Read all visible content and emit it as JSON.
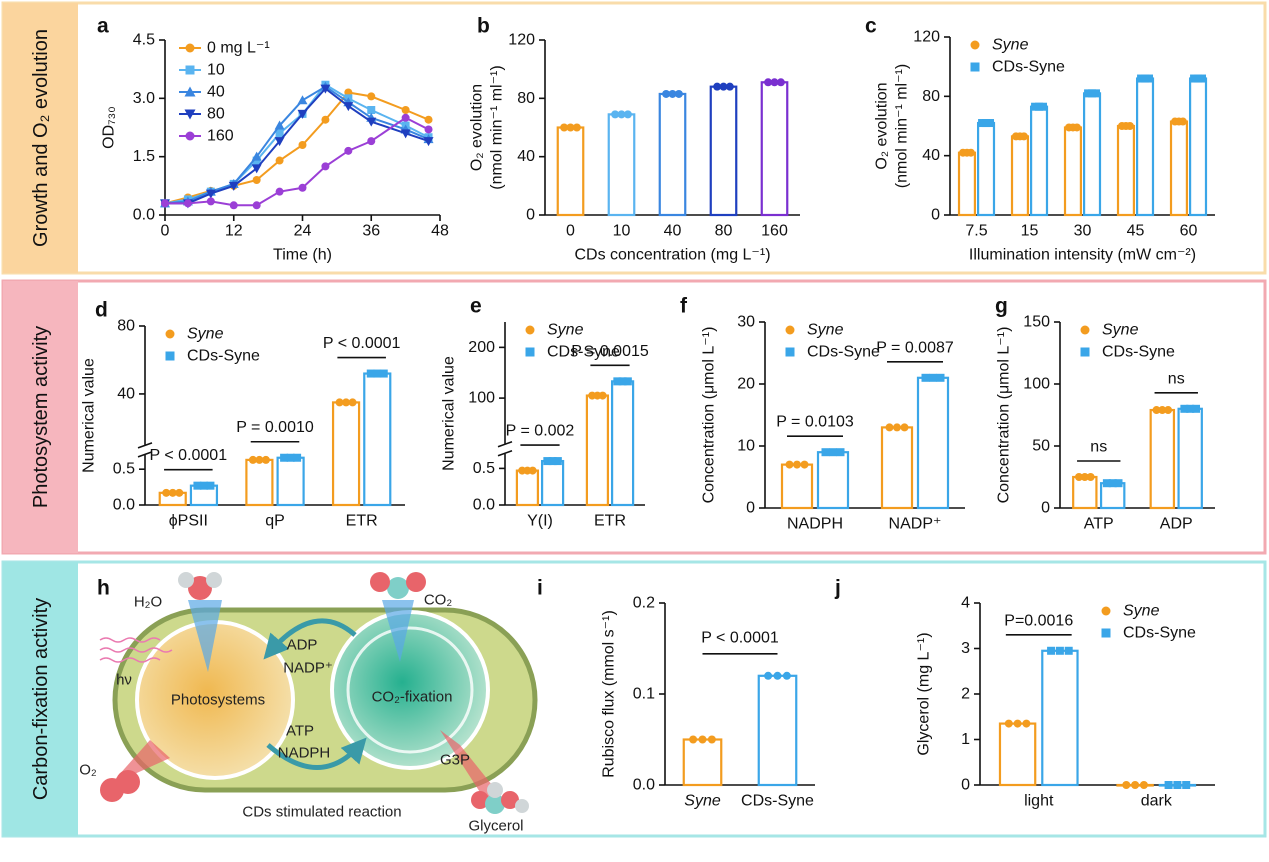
{
  "sections": [
    {
      "label": "Growth and O₂ evolution"
    },
    {
      "label": "Photosystem activity"
    },
    {
      "label": "Carbon-fixation activity"
    }
  ],
  "chart_data": [
    {
      "type": "line",
      "panel_label": "a",
      "xlabel": "Time (h)",
      "ylabel": "OD₇₃₀",
      "x": [
        0,
        4,
        8,
        12,
        16,
        20,
        24,
        28,
        32,
        36,
        42,
        46
      ],
      "xlim": [
        0,
        48
      ],
      "xticks": [
        0,
        12,
        24,
        36,
        48
      ],
      "ylim": [
        0,
        4.5
      ],
      "yticks": [
        {
          "value": 0,
          "label": "0.0"
        },
        1.5,
        {
          "value": 3,
          "label": "3.0"
        },
        4.5
      ],
      "legend": "upper left",
      "series": [
        {
          "name": "0 mg L⁻¹",
          "color": "#f39c1f",
          "marker": "circle",
          "values": [
            0.3,
            0.45,
            0.62,
            0.75,
            0.9,
            1.4,
            1.8,
            2.45,
            3.15,
            3.05,
            2.7,
            2.45
          ]
        },
        {
          "name": "10",
          "color": "#5ab4f0",
          "marker": "square",
          "values": [
            0.3,
            0.4,
            0.6,
            0.8,
            1.4,
            2.1,
            2.6,
            3.35,
            3.0,
            2.7,
            2.3,
            2.0
          ]
        },
        {
          "name": "40",
          "color": "#3a86e0",
          "marker": "triangle",
          "values": [
            0.3,
            0.35,
            0.6,
            0.8,
            1.5,
            2.3,
            2.95,
            3.3,
            2.9,
            2.5,
            2.2,
            1.95
          ]
        },
        {
          "name": "80",
          "color": "#1f3fbf",
          "marker": "triangle-down",
          "values": [
            0.3,
            0.3,
            0.55,
            0.75,
            1.2,
            1.9,
            2.6,
            3.25,
            2.8,
            2.4,
            2.1,
            1.9
          ]
        },
        {
          "name": "160",
          "color": "#9b3fd6",
          "marker": "circle",
          "values": [
            0.3,
            0.3,
            0.35,
            0.25,
            0.25,
            0.6,
            0.7,
            1.25,
            1.65,
            1.9,
            2.5,
            2.2
          ]
        }
      ]
    },
    {
      "type": "bar",
      "panel_label": "b",
      "xlabel": "CDs concentration (mg L⁻¹)",
      "ylabel": [
        "O₂ evolution",
        "(nmol min⁻¹ ml⁻¹)"
      ],
      "categories": [
        "0",
        "10",
        "40",
        "80",
        "160"
      ],
      "ylim": [
        0,
        120
      ],
      "yticks": [
        0,
        40,
        80,
        120
      ],
      "series": [
        {
          "colors": [
            "#f39c1f",
            "#5ab4f0",
            "#3a86e0",
            "#1f3fbf",
            "#7a2fd0"
          ],
          "marker": "circle",
          "values": [
            60,
            69,
            83,
            88,
            91
          ]
        }
      ]
    },
    {
      "type": "bar",
      "panel_label": "c",
      "xlabel": "Illumination intensity (mW cm⁻²)",
      "ylabel": [
        "O₂ evolution",
        "(nmol min⁻¹ ml⁻¹)"
      ],
      "categories": [
        "7.5",
        "15",
        "30",
        "45",
        "60"
      ],
      "ylim": [
        0,
        120
      ],
      "yticks": [
        0,
        40,
        80,
        120
      ],
      "legend": "upper left",
      "series": [
        {
          "name": "Syne",
          "color": "#f39c1f",
          "marker": "circle",
          "values": [
            42,
            53,
            59,
            60,
            63
          ]
        },
        {
          "name": "CDs-Syne",
          "color": "#3aa6e8",
          "marker": "square",
          "values": [
            62,
            73,
            82,
            92,
            92
          ]
        }
      ]
    },
    {
      "type": "bar",
      "panel_label": "d",
      "ylabel": "Numerical value",
      "categories": [
        "ϕPSII",
        "qP",
        "ETR"
      ],
      "y_segments": [
        {
          "ylim": [
            0,
            0.7
          ],
          "yticks": [
            {
              "value": 0,
              "label": "0.0"
            },
            0.5
          ]
        },
        {
          "ylim": [
            10,
            80
          ],
          "yticks": [
            40,
            80
          ]
        }
      ],
      "legend": "upper left",
      "p_labels": [
        "P < 0.0001",
        "P = 0.0010",
        "P < 0.0001"
      ],
      "series": [
        {
          "name": "Syne",
          "color": "#f39c1f",
          "marker": "circle",
          "values": [
            0.17,
            0.63,
            35
          ]
        },
        {
          "name": "CDs-Syne",
          "color": "#3aa6e8",
          "marker": "square",
          "values": [
            0.27,
            0.66,
            52
          ]
        }
      ]
    },
    {
      "type": "bar",
      "panel_label": "e",
      "ylabel": "Numerical value",
      "categories": [
        "Y(I)",
        "ETR"
      ],
      "y_segments": [
        {
          "ylim": [
            0,
            0.7
          ],
          "yticks": [
            {
              "value": 0,
              "label": "0.0"
            },
            0.5
          ]
        },
        {
          "ylim": [
            10,
            250
          ],
          "yticks": [
            100,
            200
          ]
        }
      ],
      "legend": "upper left",
      "p_labels": [
        "P = 0.002",
        "P = 0.0015"
      ],
      "series": [
        {
          "name": "Syne",
          "color": "#f39c1f",
          "marker": "circle",
          "values": [
            0.47,
            105
          ]
        },
        {
          "name": "CDs-Syne",
          "color": "#3aa6e8",
          "marker": "square",
          "values": [
            0.6,
            133
          ]
        }
      ]
    },
    {
      "type": "bar",
      "panel_label": "f",
      "ylabel": "Concentration (μmol L⁻¹)",
      "categories": [
        "NADPH",
        "NADP⁺"
      ],
      "ylim": [
        0,
        30
      ],
      "yticks": [
        0,
        10,
        20,
        30
      ],
      "legend": "upper left",
      "p_labels": [
        "P = 0.0103",
        "P = 0.0087"
      ],
      "series": [
        {
          "name": "Syne",
          "color": "#f39c1f",
          "marker": "circle",
          "values": [
            7,
            13
          ]
        },
        {
          "name": "CDs-Syne",
          "color": "#3aa6e8",
          "marker": "square",
          "values": [
            9,
            21
          ]
        }
      ]
    },
    {
      "type": "bar",
      "panel_label": "g",
      "ylabel": "Concentration (μmol L⁻¹)",
      "categories": [
        "ATP",
        "ADP"
      ],
      "ylim": [
        0,
        150
      ],
      "yticks": [
        0,
        50,
        100,
        150
      ],
      "legend": "upper left",
      "p_labels": [
        "ns",
        "ns"
      ],
      "series": [
        {
          "name": "Syne",
          "color": "#f39c1f",
          "marker": "circle",
          "values": [
            25,
            79
          ]
        },
        {
          "name": "CDs-Syne",
          "color": "#3aa6e8",
          "marker": "square",
          "values": [
            20,
            80
          ]
        }
      ]
    },
    {
      "type": "bar",
      "panel_label": "i",
      "ylabel": "Rubisco flux (mmol s⁻¹)",
      "categories": [
        "Syne",
        "CDs-Syne"
      ],
      "ylim": [
        0,
        0.2
      ],
      "yticks": [
        {
          "value": 0,
          "label": "0.0"
        },
        0.1,
        0.2
      ],
      "comparison": "P < 0.0001",
      "series": [
        {
          "colors": [
            "#f39c1f",
            "#3aa6e8"
          ],
          "marker": "circle",
          "values": [
            0.05,
            0.12
          ]
        }
      ]
    },
    {
      "type": "bar",
      "panel_label": "j",
      "ylabel": "Glycerol (mg L⁻¹)",
      "categories": [
        "light",
        "dark"
      ],
      "ylim": [
        0,
        4
      ],
      "yticks": [
        0,
        1,
        2,
        3,
        4
      ],
      "legend": "upper right",
      "p_labels": [
        "P=0.0016",
        null
      ],
      "series": [
        {
          "name": "Syne",
          "color": "#f39c1f",
          "marker": "circle",
          "values": [
            1.35,
            0
          ]
        },
        {
          "name": "CDs-Syne",
          "color": "#3aa6e8",
          "marker": "square",
          "values": [
            2.95,
            0
          ]
        }
      ]
    }
  ],
  "diagram": {
    "panel_label": "h",
    "labels": {
      "h2o": "H₂O",
      "co2": "CO₂",
      "hv": "hν",
      "adp": "ADP",
      "nadp": "NADP⁺",
      "photosystems": "Photosystems",
      "co2_fixation": "CO₂-fixation",
      "atp": "ATP",
      "nadph": "NADPH",
      "g3p": "G3P",
      "o2": "O₂",
      "caption": "CDs stimulated reaction",
      "glycerol": "Glycerol"
    }
  }
}
